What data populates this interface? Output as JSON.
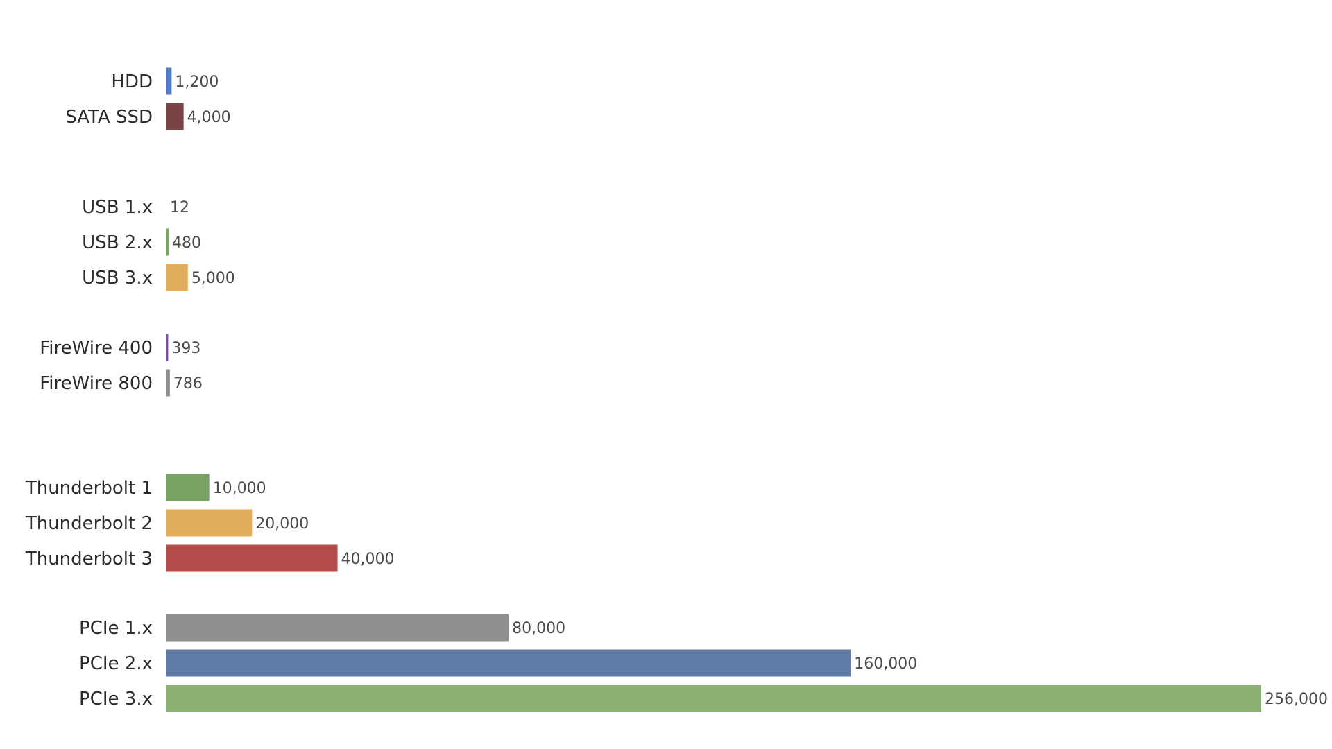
{
  "chart_data": {
    "type": "bar",
    "orientation": "horizontal",
    "title": "",
    "xlabel": "",
    "ylabel": "",
    "xlim": [
      0,
      256000
    ],
    "grid": false,
    "legend": "none",
    "groups": [
      {
        "bars": [
          {
            "category": "HDD",
            "value": 1200,
            "value_label": "1,200",
            "color": "#4e79c5"
          },
          {
            "category": "SATA SSD",
            "value": 4000,
            "value_label": "4,000",
            "color": "#7a4346"
          }
        ]
      },
      {
        "bars": [
          {
            "category": "USB 1.x",
            "value": 12,
            "value_label": "12",
            "color": "#8c8c8c"
          },
          {
            "category": "USB 2.x",
            "value": 480,
            "value_label": "480",
            "color": "#79a163"
          },
          {
            "category": "USB 3.x",
            "value": 5000,
            "value_label": "5,000",
            "color": "#e0ad5d"
          }
        ]
      },
      {
        "bars": [
          {
            "category": "FireWire 400",
            "value": 393,
            "value_label": "393",
            "color": "#7b4f9d"
          },
          {
            "category": "FireWire 800",
            "value": 786,
            "value_label": "786",
            "color": "#8c8c8c"
          }
        ]
      },
      {
        "bars": [
          {
            "category": "Thunderbolt 1",
            "value": 10000,
            "value_label": "10,000",
            "color": "#79a163"
          },
          {
            "category": "Thunderbolt 2",
            "value": 20000,
            "value_label": "20,000",
            "color": "#e0ad5d"
          },
          {
            "category": "Thunderbolt 3",
            "value": 40000,
            "value_label": "40,000",
            "color": "#b54c4c"
          }
        ]
      },
      {
        "bars": [
          {
            "category": "PCIe 1.x",
            "value": 80000,
            "value_label": "80,000",
            "color": "#8f8f8f"
          },
          {
            "category": "PCIe 2.x",
            "value": 160000,
            "value_label": "160,000",
            "color": "#607ba8"
          },
          {
            "category": "PCIe 3.x",
            "value": 256000,
            "value_label": "256,000",
            "color": "#8bb073"
          }
        ]
      }
    ]
  }
}
